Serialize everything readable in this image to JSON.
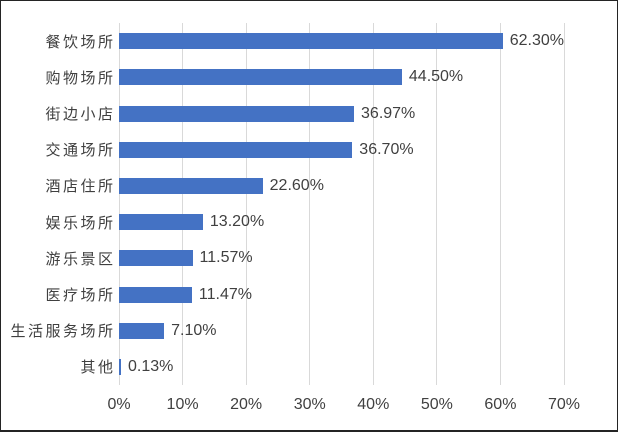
{
  "chart_data": {
    "type": "bar",
    "orientation": "horizontal",
    "title": "",
    "categories": [
      "餐饮场所",
      "购物场所",
      "街边小店",
      "交通场所",
      "酒店住所",
      "娱乐场所",
      "游乐景区",
      "医疗场所",
      "生活服务场所",
      "其他"
    ],
    "values": [
      62.3,
      44.5,
      36.97,
      36.7,
      22.6,
      13.2,
      11.57,
      11.47,
      7.1,
      0.13
    ],
    "data_labels": [
      "62.30%",
      "44.50%",
      "36.97%",
      "36.70%",
      "22.60%",
      "13.20%",
      "11.57%",
      "11.47%",
      "7.10%",
      "0.13%"
    ],
    "x_ticks": [
      "0%",
      "10%",
      "20%",
      "30%",
      "40%",
      "50%",
      "60%",
      "70%"
    ],
    "x_tick_values": [
      0,
      10,
      20,
      30,
      40,
      50,
      60,
      70
    ],
    "xlim": [
      0,
      70
    ],
    "grid": true,
    "legend": false,
    "colors": {
      "bar": "#4472C4",
      "gridline": "#d9d9d9",
      "text": "#404040",
      "background": "#ffffff",
      "border": "#242424"
    }
  }
}
